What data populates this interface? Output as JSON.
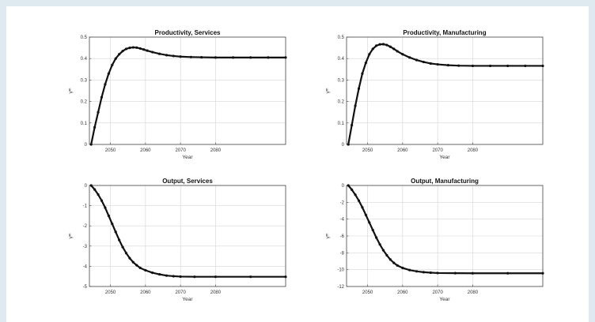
{
  "chart_data": [
    {
      "type": "line",
      "title": "Productivity, Services",
      "xlabel": "Year",
      "ylabel": "γᵐ",
      "xlim": [
        2044,
        2100
      ],
      "ylim": [
        0,
        0.5
      ],
      "xticks": [
        2050,
        2060,
        2070,
        2080
      ],
      "yticks": [
        0,
        0.1,
        0.2,
        0.3,
        0.4,
        0.5
      ],
      "xtick_labels": [
        "2050",
        "2060",
        "2070",
        "2080"
      ],
      "ytick_labels": [
        "0",
        "0.1",
        "0.2",
        "0.3",
        "0.4",
        "0.5"
      ],
      "grid": true,
      "series": [
        {
          "values": [
            [
              2044.5,
              0.0
            ],
            [
              2045.5,
              0.08
            ],
            [
              2046.5,
              0.15
            ],
            [
              2047.5,
              0.22
            ],
            [
              2048.5,
              0.28
            ],
            [
              2049.5,
              0.33
            ],
            [
              2050.5,
              0.37
            ],
            [
              2051.5,
              0.4
            ],
            [
              2052.5,
              0.42
            ],
            [
              2053.5,
              0.435
            ],
            [
              2054.5,
              0.445
            ],
            [
              2055.5,
              0.45
            ],
            [
              2056.5,
              0.452
            ],
            [
              2057.5,
              0.451
            ],
            [
              2058.5,
              0.447
            ],
            [
              2059.5,
              0.442
            ],
            [
              2060.5,
              0.437
            ],
            [
              2062,
              0.43
            ],
            [
              2064,
              0.422
            ],
            [
              2066,
              0.416
            ],
            [
              2068,
              0.412
            ],
            [
              2070,
              0.409
            ],
            [
              2073,
              0.407
            ],
            [
              2076,
              0.406
            ],
            [
              2080,
              0.405
            ],
            [
              2085,
              0.405
            ],
            [
              2090,
              0.405
            ],
            [
              2095,
              0.405
            ],
            [
              2100,
              0.405
            ]
          ]
        }
      ]
    },
    {
      "type": "line",
      "title": "Productivity, Manufacturing",
      "xlabel": "Year",
      "ylabel": "γᵐ",
      "xlim": [
        2044,
        2100
      ],
      "ylim": [
        0,
        0.5
      ],
      "xticks": [
        2050,
        2060,
        2070,
        2080
      ],
      "yticks": [
        0,
        0.1,
        0.2,
        0.3,
        0.4,
        0.5
      ],
      "xtick_labels": [
        "2050",
        "2060",
        "2070",
        "2080"
      ],
      "ytick_labels": [
        "0",
        "0.1",
        "0.2",
        "0.3",
        "0.4",
        "0.5"
      ],
      "grid": true,
      "series": [
        {
          "values": [
            [
              2044.5,
              0.0
            ],
            [
              2045.5,
              0.09
            ],
            [
              2046.5,
              0.18
            ],
            [
              2047.5,
              0.26
            ],
            [
              2048.5,
              0.33
            ],
            [
              2049.5,
              0.38
            ],
            [
              2050.5,
              0.42
            ],
            [
              2051.5,
              0.445
            ],
            [
              2052.5,
              0.46
            ],
            [
              2053.5,
              0.466
            ],
            [
              2054.5,
              0.467
            ],
            [
              2055.5,
              0.463
            ],
            [
              2056.5,
              0.455
            ],
            [
              2057.5,
              0.445
            ],
            [
              2058.5,
              0.434
            ],
            [
              2060,
              0.42
            ],
            [
              2062,
              0.405
            ],
            [
              2064,
              0.393
            ],
            [
              2066,
              0.384
            ],
            [
              2068,
              0.377
            ],
            [
              2070,
              0.373
            ],
            [
              2073,
              0.369
            ],
            [
              2076,
              0.367
            ],
            [
              2080,
              0.366
            ],
            [
              2085,
              0.366
            ],
            [
              2090,
              0.366
            ],
            [
              2095,
              0.366
            ],
            [
              2100,
              0.366
            ]
          ]
        }
      ]
    },
    {
      "type": "line",
      "title": "Output, Services",
      "xlabel": "Year",
      "ylabel": "γᵐ",
      "xlim": [
        2044,
        2100
      ],
      "ylim": [
        -5,
        0
      ],
      "xticks": [
        2050,
        2060,
        2070,
        2080
      ],
      "yticks": [
        -5,
        -4,
        -3,
        -2,
        -1,
        0
      ],
      "xtick_labels": [
        "2050",
        "2060",
        "2070",
        "2080"
      ],
      "ytick_labels": [
        "-5",
        "-4",
        "-3",
        "-2",
        "-1",
        "0"
      ],
      "grid": true,
      "series": [
        {
          "values": [
            [
              2044.5,
              0.0
            ],
            [
              2045.5,
              -0.2
            ],
            [
              2046.5,
              -0.45
            ],
            [
              2047.5,
              -0.75
            ],
            [
              2048.5,
              -1.1
            ],
            [
              2049.5,
              -1.5
            ],
            [
              2050.5,
              -1.9
            ],
            [
              2051.5,
              -2.3
            ],
            [
              2052.5,
              -2.7
            ],
            [
              2053.5,
              -3.05
            ],
            [
              2054.5,
              -3.35
            ],
            [
              2055.5,
              -3.6
            ],
            [
              2056.5,
              -3.8
            ],
            [
              2057.5,
              -3.95
            ],
            [
              2058.5,
              -4.08
            ],
            [
              2060,
              -4.2
            ],
            [
              2062,
              -4.32
            ],
            [
              2064,
              -4.4
            ],
            [
              2066,
              -4.46
            ],
            [
              2068,
              -4.49
            ],
            [
              2070,
              -4.51
            ],
            [
              2074,
              -4.52
            ],
            [
              2080,
              -4.52
            ],
            [
              2090,
              -4.52
            ],
            [
              2100,
              -4.52
            ]
          ]
        }
      ]
    },
    {
      "type": "line",
      "title": "Output, Manufacturing",
      "xlabel": "Year",
      "ylabel": "γᵐ",
      "xlim": [
        2044,
        2100
      ],
      "ylim": [
        -12,
        0
      ],
      "xticks": [
        2050,
        2060,
        2070,
        2080
      ],
      "yticks": [
        -12,
        -10,
        -8,
        -6,
        -4,
        -2,
        0
      ],
      "xtick_labels": [
        "2050",
        "2060",
        "2070",
        "2080"
      ],
      "ytick_labels": [
        "-12",
        "-10",
        "-8",
        "-6",
        "-4",
        "-2",
        "0"
      ],
      "grid": true,
      "series": [
        {
          "values": [
            [
              2044.5,
              0.0
            ],
            [
              2045.5,
              -0.5
            ],
            [
              2046.5,
              -1.1
            ],
            [
              2047.5,
              -1.8
            ],
            [
              2048.5,
              -2.6
            ],
            [
              2049.5,
              -3.5
            ],
            [
              2050.5,
              -4.4
            ],
            [
              2051.5,
              -5.3
            ],
            [
              2052.5,
              -6.2
            ],
            [
              2053.5,
              -7.0
            ],
            [
              2054.5,
              -7.7
            ],
            [
              2055.5,
              -8.3
            ],
            [
              2056.5,
              -8.8
            ],
            [
              2057.5,
              -9.2
            ],
            [
              2058.5,
              -9.5
            ],
            [
              2060,
              -9.8
            ],
            [
              2062,
              -10.05
            ],
            [
              2064,
              -10.2
            ],
            [
              2066,
              -10.3
            ],
            [
              2068,
              -10.36
            ],
            [
              2070,
              -10.4
            ],
            [
              2075,
              -10.42
            ],
            [
              2080,
              -10.43
            ],
            [
              2090,
              -10.43
            ],
            [
              2100,
              -10.43
            ]
          ]
        }
      ]
    }
  ]
}
